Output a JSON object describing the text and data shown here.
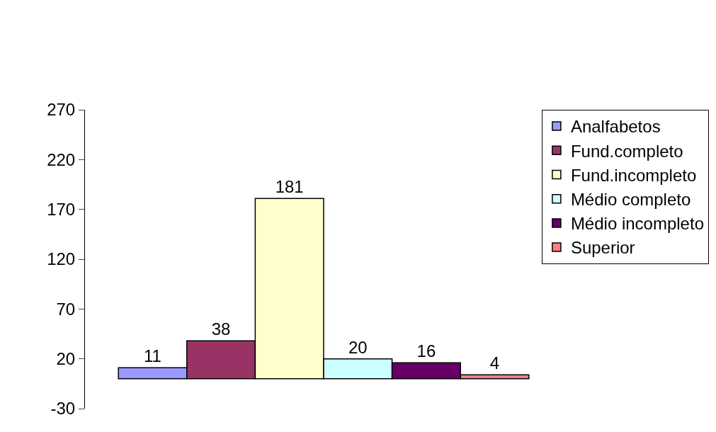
{
  "chart_data": {
    "type": "bar",
    "categories": [
      null
    ],
    "series": [
      {
        "name": "Analfabetos",
        "color": "#9999ff",
        "values": [
          11
        ]
      },
      {
        "name": "Fund.completo",
        "color": "#993366",
        "values": [
          38
        ]
      },
      {
        "name": "Fund.incompleto",
        "color": "#ffffcc",
        "values": [
          181
        ]
      },
      {
        "name": "Médio completo",
        "color": "#ccffff",
        "values": [
          20
        ]
      },
      {
        "name": "Médio incompleto",
        "color": "#660066",
        "values": [
          16
        ]
      },
      {
        "name": "Superior",
        "color": "#ff8080",
        "values": [
          4
        ]
      }
    ],
    "ylim": [
      -30,
      270
    ],
    "yticks": [
      -30,
      20,
      70,
      120,
      170,
      220,
      270
    ],
    "data_labels": true,
    "legend": "right",
    "tick_labels": "y"
  }
}
